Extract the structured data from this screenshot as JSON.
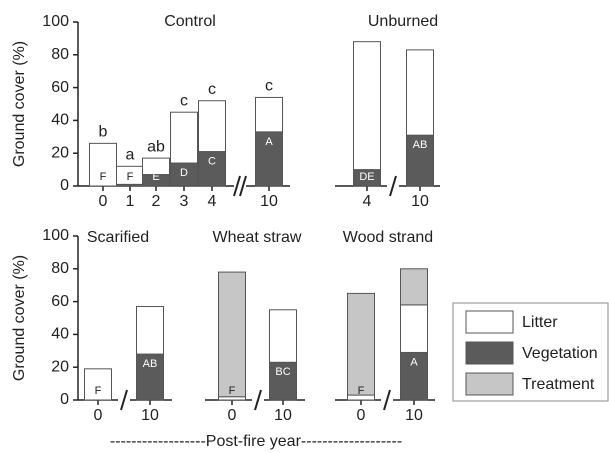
{
  "legend": [
    {
      "name": "Litter",
      "color": "#ffffff"
    },
    {
      "name": "Vegetation",
      "color": "#5b5b5b"
    },
    {
      "name": "Treatment",
      "color": "#c6c6c6"
    }
  ],
  "xlabel": "------------------Post-fire year-------------------",
  "chart_data": [
    {
      "type": "bar",
      "title": "Control",
      "ylabel": "Ground cover (%)",
      "categories": [
        "0",
        "1",
        "2",
        "3",
        "4",
        "10"
      ],
      "series": [
        {
          "values": [
            26,
            11,
            10,
            31,
            31,
            21
          ]
        },
        {
          "values": [
            0,
            1,
            7,
            14,
            21,
            33
          ]
        }
      ],
      "above_labels": [
        "b",
        "a",
        "ab",
        "c",
        "c",
        "c"
      ],
      "inside_labels": [
        "F",
        "F",
        "E",
        "D",
        "C",
        "A"
      ],
      "ylim": [
        0,
        100
      ],
      "yticks": [
        0,
        20,
        40,
        60,
        80,
        100
      ]
    },
    {
      "type": "bar",
      "title": "Unburned",
      "categories": [
        "4",
        "10"
      ],
      "series": [
        {
          "values": [
            78,
            52
          ]
        },
        {
          "values": [
            10,
            31
          ]
        }
      ],
      "inside_labels": [
        "DE",
        "AB"
      ],
      "ylim": [
        0,
        100
      ]
    },
    {
      "type": "bar",
      "title": "Scarified",
      "ylabel": "Ground cover (%)",
      "categories": [
        "0",
        "10"
      ],
      "series": [
        {
          "values": [
            19,
            29
          ]
        },
        {
          "values": [
            0,
            28
          ]
        }
      ],
      "inside_labels": [
        "F",
        "AB"
      ],
      "ylim": [
        0,
        100
      ],
      "yticks": [
        0,
        20,
        40,
        60,
        80,
        100
      ]
    },
    {
      "type": "bar",
      "title": "Wheat straw",
      "categories": [
        "0",
        "10"
      ],
      "series": [
        {
          "values": [
            2,
            32
          ]
        },
        {
          "values": [
            0,
            23
          ]
        },
        {
          "values": [
            76,
            0
          ]
        }
      ],
      "inside_labels": [
        "F",
        "BC"
      ],
      "ylim": [
        0,
        100
      ]
    },
    {
      "type": "bar",
      "title": "Wood strand",
      "categories": [
        "0",
        "10"
      ],
      "series": [
        {
          "values": [
            3,
            29
          ]
        },
        {
          "values": [
            0,
            29
          ]
        },
        {
          "values": [
            62,
            22
          ]
        }
      ],
      "inside_labels": [
        "F",
        "A"
      ],
      "ylim": [
        0,
        100
      ]
    }
  ]
}
